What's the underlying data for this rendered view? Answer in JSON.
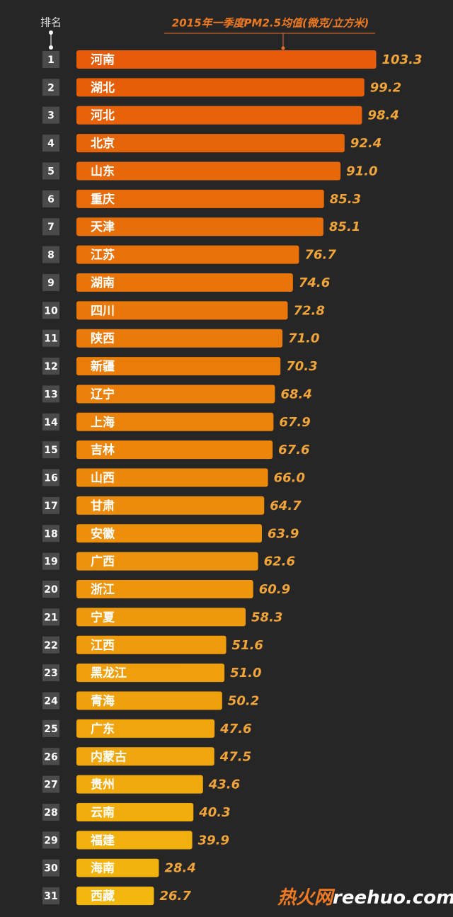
{
  "chart_data": {
    "type": "bar",
    "orientation": "horizontal",
    "title": "2015年一季度PM2.5均值(微克/立方米)",
    "rank_header": "排名",
    "ranks": [
      1,
      2,
      3,
      4,
      5,
      6,
      7,
      8,
      9,
      10,
      11,
      12,
      13,
      14,
      15,
      16,
      17,
      18,
      19,
      20,
      21,
      22,
      23,
      24,
      25,
      26,
      27,
      28,
      29,
      30,
      31
    ],
    "categories": [
      "河南",
      "湖北",
      "河北",
      "北京",
      "山东",
      "重庆",
      "天津",
      "江苏",
      "湖南",
      "四川",
      "陕西",
      "新疆",
      "辽宁",
      "上海",
      "吉林",
      "山西",
      "甘肃",
      "安徽",
      "广西",
      "浙江",
      "宁夏",
      "江西",
      "黑龙江",
      "青海",
      "广东",
      "内蒙古",
      "贵州",
      "云南",
      "福建",
      "海南",
      "西藏"
    ],
    "values": [
      103.3,
      99.2,
      98.4,
      92.4,
      91.0,
      85.3,
      85.1,
      76.7,
      74.6,
      72.8,
      71.0,
      70.3,
      68.4,
      67.9,
      67.6,
      66.0,
      64.7,
      63.9,
      62.6,
      60.9,
      58.3,
      51.6,
      51.0,
      50.2,
      47.6,
      47.5,
      43.6,
      40.3,
      39.9,
      28.4,
      26.7
    ],
    "value_labels": [
      "103.3",
      "99.2",
      "98.4",
      "92.4",
      "91.0",
      "85.3",
      "85.1",
      "76.7",
      "74.6",
      "72.8",
      "71.0",
      "70.3",
      "68.4",
      "67.9",
      "67.6",
      "66.0",
      "64.7",
      "63.9",
      "62.6",
      "60.9",
      "58.3",
      "51.6",
      "51.0",
      "50.2",
      "47.6",
      "47.5",
      "43.6",
      "40.3",
      "39.9",
      "28.4",
      "26.7"
    ],
    "color_gradient": [
      "#e65c08",
      "#f2b60e"
    ],
    "xlim": [
      0,
      125
    ]
  },
  "watermark": {
    "brand": "热火网",
    "domain": "reehuo.com"
  }
}
